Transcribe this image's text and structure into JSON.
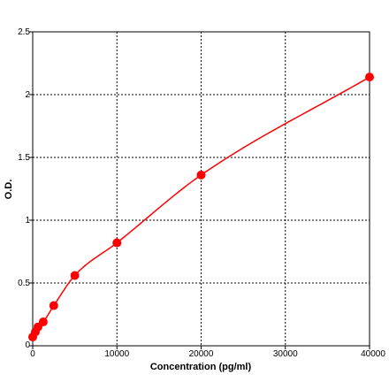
{
  "chart_data": {
    "type": "scatter",
    "xlabel": "Concentration (pg/ml)",
    "ylabel": "O.D.",
    "xlim": [
      0,
      40000
    ],
    "ylim": [
      0,
      2.5
    ],
    "x_ticks": [
      0,
      10000,
      20000,
      30000,
      40000
    ],
    "x_tick_labels": [
      "0",
      "10000",
      "20000",
      "30000",
      "40000"
    ],
    "y_ticks": [
      0,
      0.5,
      1,
      1.5,
      2,
      2.5
    ],
    "y_tick_labels": [
      "0",
      "0.5",
      "1",
      "1.5",
      "2",
      "2.5"
    ],
    "grid": true,
    "series": [
      {
        "color": "#ff0000",
        "x": [
          0,
          312,
          625,
          1250,
          2500,
          5000,
          10000,
          20000,
          40000
        ],
        "y": [
          0.07,
          0.11,
          0.15,
          0.19,
          0.32,
          0.56,
          0.82,
          1.36,
          2.14
        ],
        "fit": "curve"
      }
    ]
  }
}
